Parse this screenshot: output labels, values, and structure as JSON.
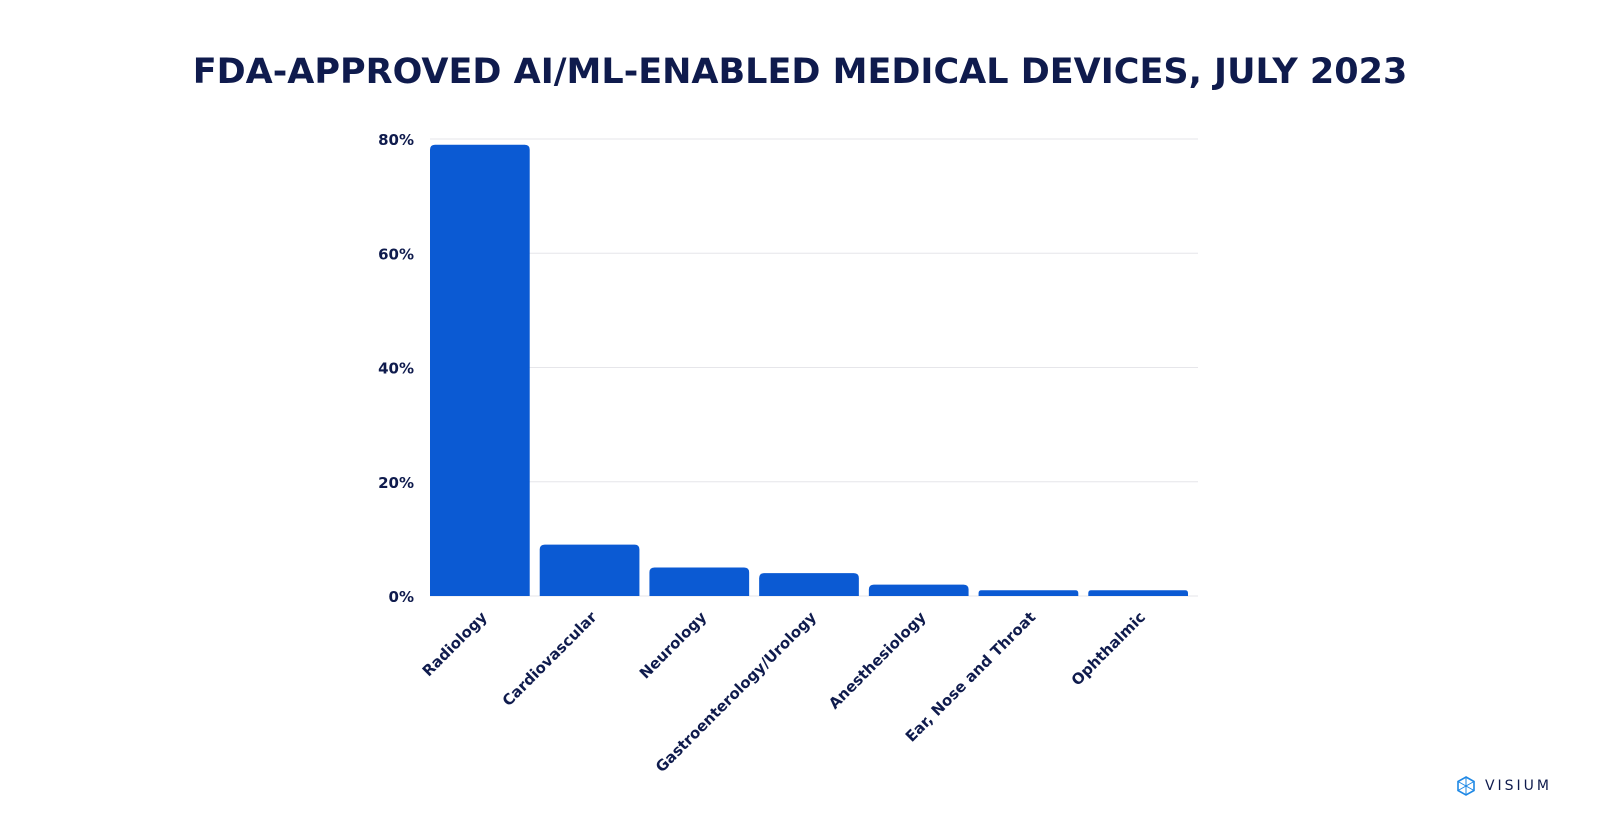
{
  "chart_data": {
    "type": "bar",
    "title": "FDA-APPROVED AI/ML-ENABLED MEDICAL DEVICES, JULY 2023",
    "categories": [
      "Radiology",
      "Cardiovascular",
      "Neurology",
      "Gastroenterology/Urology",
      "Anesthesiology",
      "Ear, Nose and Throat",
      "Ophthalmic"
    ],
    "values": [
      79,
      9,
      5,
      4,
      2,
      1,
      1
    ],
    "unit": "%",
    "ylim": [
      0,
      80
    ],
    "yticks": [
      "0%",
      "20%",
      "40%",
      "60%",
      "80%"
    ],
    "ytick_values": [
      0,
      20,
      40,
      60,
      80
    ],
    "grid": true,
    "bar_color": "#0b5ad3",
    "text_color": "#0f1b4d"
  },
  "brand": {
    "name": "VISIUM",
    "icon": "visium-logo-icon"
  }
}
